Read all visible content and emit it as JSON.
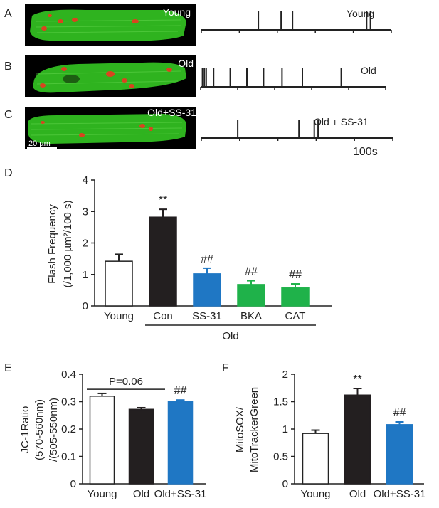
{
  "panels": {
    "A": {
      "letter": "A",
      "image_label": "Young",
      "trace_label": "Young",
      "flash_positions": [
        0.3,
        0.42,
        0.48,
        0.87,
        0.89
      ]
    },
    "B": {
      "letter": "B",
      "image_label": "Old",
      "trace_label": "Old",
      "flash_positions": [
        0.01,
        0.02,
        0.03,
        0.07,
        0.16,
        0.25,
        0.34,
        0.44,
        0.55,
        0.76
      ]
    },
    "C": {
      "letter": "C",
      "image_label": "Old+SS-31",
      "trace_label": "Old + SS-31",
      "scale_bar": "20 µm",
      "time_scale": "100s",
      "flash_positions": [
        0.19,
        0.51,
        0.59,
        0.61
      ]
    }
  },
  "colors": {
    "white_bar": "#ffffff",
    "black_bar": "#231f20",
    "blue_bar": "#1f77c4",
    "green_bar": "#1fb24a",
    "cell_green": "#2fb31f",
    "flash_red": "#d9441f"
  },
  "chart_data": [
    {
      "panel": "D",
      "type": "bar",
      "categories": [
        "Young",
        "Con",
        "SS-31",
        "BKA",
        "CAT"
      ],
      "values": [
        1.42,
        2.82,
        1.02,
        0.68,
        0.57
      ],
      "errors": [
        0.22,
        0.25,
        0.18,
        0.12,
        0.13
      ],
      "bar_colors": [
        "#ffffff",
        "#231f20",
        "#1f77c4",
        "#1fb24a",
        "#1fb24a"
      ],
      "annotations": [
        "",
        "**",
        "##",
        "##",
        "##"
      ],
      "group_label": "Old",
      "ylabel_line1": "Flash Frequency",
      "ylabel_line2": "(/1,000 µm²/100 s)",
      "ylim": [
        0,
        4
      ],
      "yticks": [
        "0",
        "1",
        "2",
        "3",
        "4"
      ]
    },
    {
      "panel": "E",
      "type": "bar",
      "categories": [
        "Young",
        "Old",
        "Old+SS-31"
      ],
      "values": [
        0.32,
        0.272,
        0.3
      ],
      "errors": [
        0.01,
        0.006,
        0.006
      ],
      "bar_colors": [
        "#ffffff",
        "#231f20",
        "#1f77c4"
      ],
      "annotations": [
        "",
        "",
        "##"
      ],
      "bracket_label": "P=0.06",
      "ylabel_line1": "JC-1Ratio",
      "ylabel_line2": "(570-560nm)",
      "ylabel_line3": "/(505-550nm)",
      "ylim": [
        0,
        0.4
      ],
      "yticks": [
        "0",
        "0.1",
        "0.2",
        "0.3",
        "0.4"
      ]
    },
    {
      "panel": "F",
      "type": "bar",
      "categories": [
        "Young",
        "Old",
        "Old+SS-31"
      ],
      "values": [
        0.92,
        1.62,
        1.08
      ],
      "errors": [
        0.06,
        0.12,
        0.05
      ],
      "bar_colors": [
        "#ffffff",
        "#231f20",
        "#1f77c4"
      ],
      "annotations": [
        "",
        "**",
        "##"
      ],
      "ylabel_line1": "MitoSOX/",
      "ylabel_line2": "MitoTrackerGreen",
      "ylim": [
        0,
        2
      ],
      "yticks": [
        "0",
        "0.5",
        "1",
        "1.5",
        "2"
      ]
    }
  ]
}
